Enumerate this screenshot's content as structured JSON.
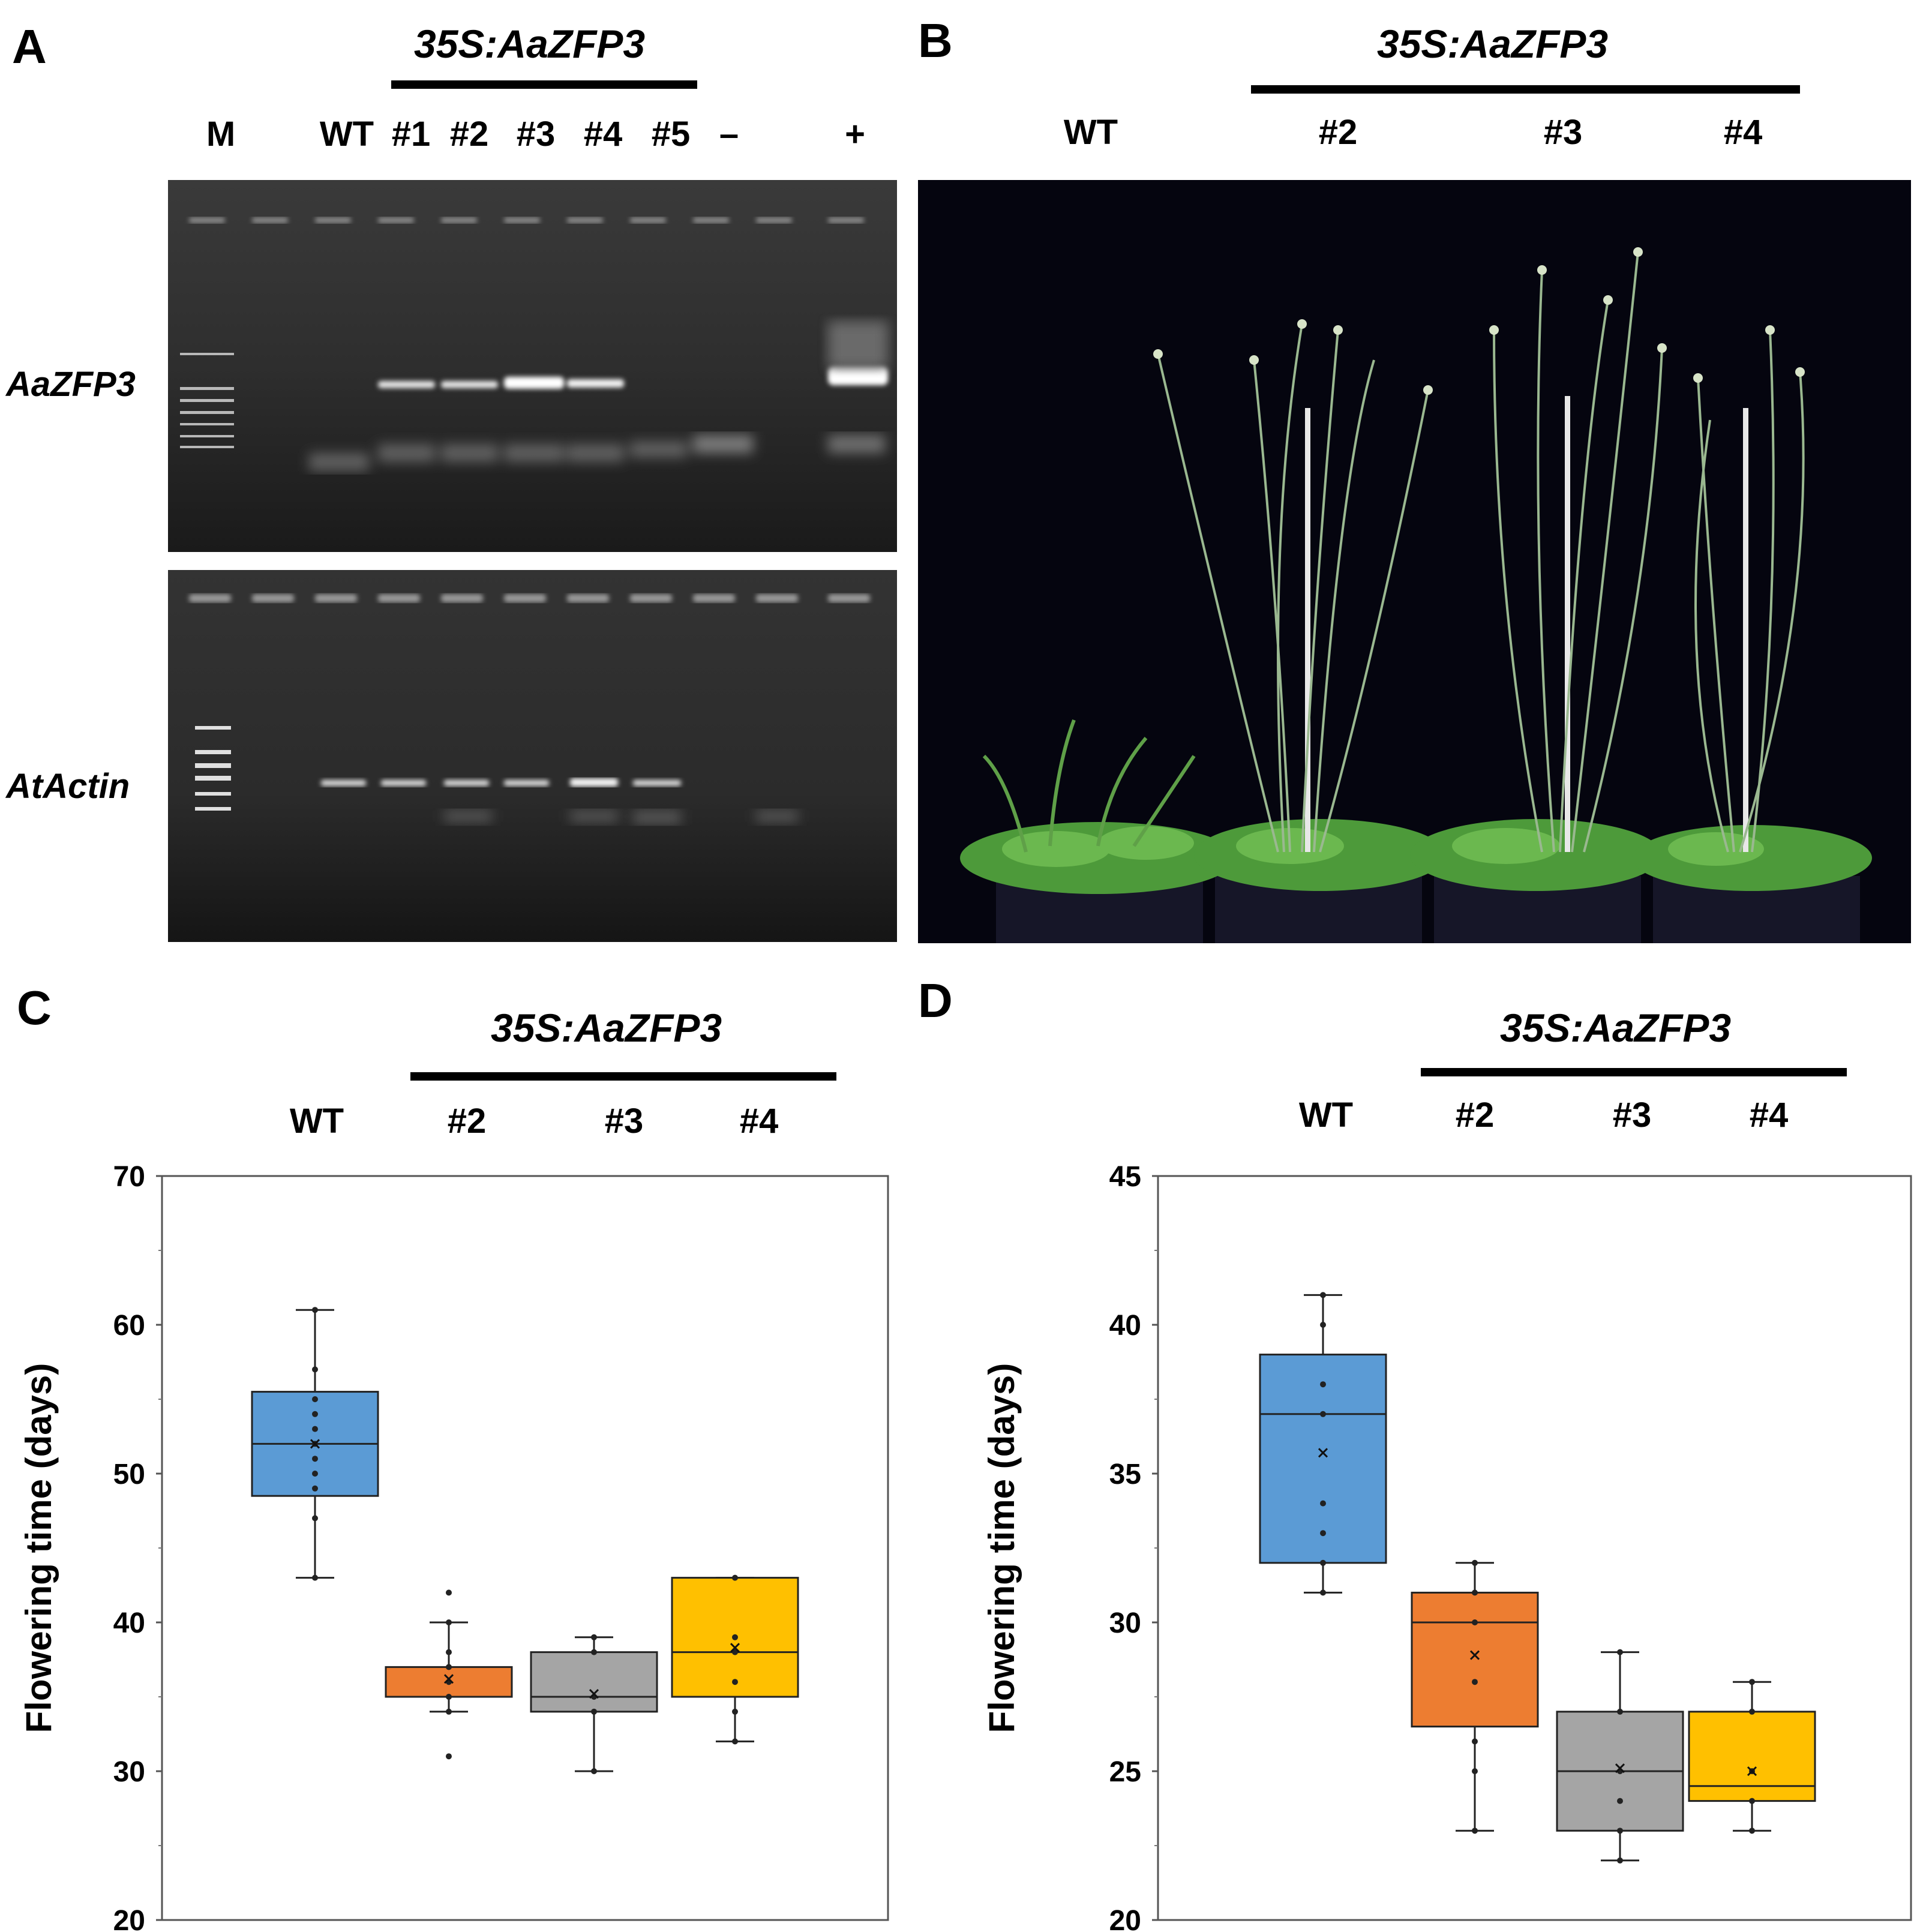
{
  "panels": {
    "A": {
      "letter": "A",
      "genotype_label": "35S:AaZFP3",
      "lanes": [
        "M",
        "WT",
        "#1",
        "#2",
        "#3",
        "#4",
        "#5",
        "–",
        "+"
      ],
      "genes": [
        "AaZFP3",
        "AtActin"
      ]
    },
    "B": {
      "letter": "B",
      "genotype_label": "35S:AaZFP3",
      "labels": [
        "WT",
        "#2",
        "#3",
        "#4"
      ]
    },
    "C": {
      "letter": "C",
      "genotype_label": "35S:AaZFP3",
      "labels": [
        "WT",
        "#2",
        "#3",
        "#4"
      ]
    },
    "D": {
      "letter": "D",
      "genotype_label": "35S:AaZFP3",
      "labels": [
        "WT",
        "#2",
        "#3",
        "#4"
      ]
    }
  },
  "chart_data": [
    {
      "panel": "C",
      "type": "box",
      "ylabel": "Flowering time (days)",
      "ylim": [
        20,
        70
      ],
      "yticks": [
        20,
        30,
        40,
        50,
        60,
        70
      ],
      "categories": [
        "WT",
        "#2",
        "#3",
        "#4"
      ],
      "colors": [
        "#5b9bd5",
        "#ed7d31",
        "#a5a5a5",
        "#ffc000"
      ],
      "boxes": [
        {
          "whisker_low": 43,
          "q1": 48.5,
          "median": 52,
          "q3": 55.5,
          "whisker_high": 61,
          "mean": 52,
          "points": [
            43,
            47,
            49,
            50,
            51,
            52,
            53,
            54,
            55,
            57,
            61
          ]
        },
        {
          "whisker_low": 34,
          "q1": 35,
          "median": 35,
          "q3": 37,
          "whisker_high": 40,
          "mean": 36.2,
          "points": [
            31,
            34,
            35,
            36,
            37,
            38,
            40,
            42
          ]
        },
        {
          "whisker_low": 30,
          "q1": 34,
          "median": 35,
          "q3": 38,
          "whisker_high": 39,
          "mean": 35.2,
          "points": [
            30,
            34,
            35,
            38,
            39
          ]
        },
        {
          "whisker_low": 32,
          "q1": 35,
          "median": 38,
          "q3": 43,
          "whisker_high": 43,
          "mean": 38.3,
          "points": [
            32,
            34,
            36,
            38,
            39,
            43
          ]
        }
      ]
    },
    {
      "panel": "D",
      "type": "box",
      "ylabel": "Flowering time (days)",
      "ylim": [
        20,
        45
      ],
      "yticks": [
        20,
        25,
        30,
        35,
        40,
        45
      ],
      "categories": [
        "WT",
        "#2",
        "#3",
        "#4"
      ],
      "colors": [
        "#5b9bd5",
        "#ed7d31",
        "#a5a5a5",
        "#ffc000"
      ],
      "boxes": [
        {
          "whisker_low": 31,
          "q1": 32,
          "median": 37,
          "q3": 39,
          "whisker_high": 41,
          "mean": 35.7,
          "points": [
            31,
            32,
            33,
            34,
            37,
            38,
            40,
            41
          ]
        },
        {
          "whisker_low": 23,
          "q1": 26.5,
          "median": 30,
          "q3": 31,
          "whisker_high": 32,
          "mean": 28.9,
          "points": [
            23,
            25,
            26,
            28,
            30,
            31,
            32
          ]
        },
        {
          "whisker_low": 22,
          "q1": 23,
          "median": 25,
          "q3": 27,
          "whisker_high": 29,
          "mean": 25.1,
          "points": [
            22,
            23,
            24,
            25,
            27,
            29
          ]
        },
        {
          "whisker_low": 23,
          "q1": 24,
          "median": 24.5,
          "q3": 27,
          "whisker_high": 28,
          "mean": 25,
          "points": [
            23,
            24,
            25,
            27,
            28
          ]
        }
      ]
    }
  ]
}
